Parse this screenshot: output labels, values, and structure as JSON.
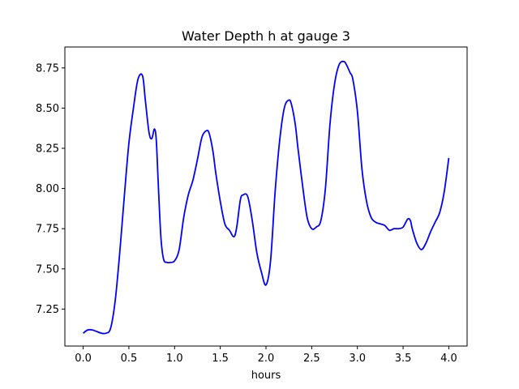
{
  "chart_data": {
    "type": "line",
    "title": "Water Depth h at gauge 3",
    "xlabel": "hours",
    "ylabel": "",
    "xlim": [
      -0.2,
      4.2
    ],
    "ylim": [
      7.02,
      8.88
    ],
    "x_ticks": [
      "0.0",
      "0.5",
      "1.0",
      "1.5",
      "2.0",
      "2.5",
      "3.0",
      "3.5",
      "4.0"
    ],
    "y_ticks": [
      "7.25",
      "7.50",
      "7.75",
      "8.00",
      "8.25",
      "8.50",
      "8.75"
    ],
    "grid": false,
    "legend": "none",
    "series": [
      {
        "color": "#0000ff",
        "x": [
          0.0,
          0.05,
          0.1,
          0.15,
          0.2,
          0.25,
          0.3,
          0.35,
          0.4,
          0.45,
          0.5,
          0.55,
          0.6,
          0.65,
          0.68,
          0.72,
          0.75,
          0.78,
          0.8,
          0.82,
          0.85,
          0.88,
          0.92,
          0.95,
          1.0,
          1.05,
          1.1,
          1.15,
          1.2,
          1.25,
          1.3,
          1.35,
          1.38,
          1.42,
          1.45,
          1.5,
          1.55,
          1.6,
          1.65,
          1.68,
          1.72,
          1.75,
          1.8,
          1.85,
          1.9,
          1.95,
          2.0,
          2.05,
          2.1,
          2.15,
          2.2,
          2.25,
          2.28,
          2.32,
          2.35,
          2.4,
          2.45,
          2.5,
          2.55,
          2.6,
          2.65,
          2.7,
          2.75,
          2.8,
          2.85,
          2.88,
          2.92,
          2.95,
          3.0,
          3.05,
          3.1,
          3.15,
          3.2,
          3.25,
          3.3,
          3.35,
          3.4,
          3.45,
          3.5,
          3.55,
          3.58,
          3.6,
          3.65,
          3.7,
          3.75,
          3.8,
          3.85,
          3.9,
          3.95,
          4.0
        ],
        "y": [
          7.1,
          7.12,
          7.12,
          7.11,
          7.1,
          7.1,
          7.13,
          7.3,
          7.6,
          7.95,
          8.28,
          8.5,
          8.68,
          8.7,
          8.55,
          8.35,
          8.31,
          8.37,
          8.3,
          8.05,
          7.7,
          7.56,
          7.54,
          7.54,
          7.55,
          7.62,
          7.82,
          7.96,
          8.05,
          8.18,
          8.32,
          8.36,
          8.34,
          8.23,
          8.1,
          7.92,
          7.78,
          7.74,
          7.7,
          7.76,
          7.93,
          7.96,
          7.95,
          7.8,
          7.6,
          7.48,
          7.4,
          7.55,
          7.98,
          8.3,
          8.5,
          8.55,
          8.52,
          8.4,
          8.25,
          8.02,
          7.82,
          7.75,
          7.76,
          7.8,
          8.0,
          8.4,
          8.65,
          8.77,
          8.79,
          8.77,
          8.72,
          8.68,
          8.48,
          8.12,
          7.92,
          7.82,
          7.79,
          7.78,
          7.77,
          7.74,
          7.75,
          7.75,
          7.76,
          7.81,
          7.8,
          7.75,
          7.66,
          7.62,
          7.66,
          7.73,
          7.79,
          7.85,
          7.98,
          8.19
        ]
      }
    ]
  }
}
